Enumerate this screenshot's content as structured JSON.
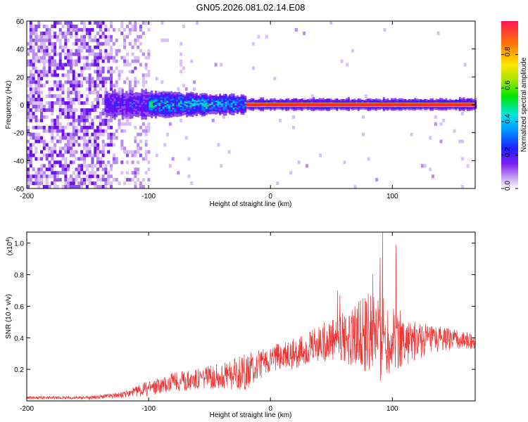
{
  "title": "GN05.2026.081.02.14.E08",
  "chart_data": [
    {
      "type": "heatmap",
      "name": "spectrogram",
      "xlabel": "Height of straight line (km)",
      "ylabel": "Frequency (Hz)",
      "xlim": [
        -200,
        168
      ],
      "ylim": [
        -60,
        60
      ],
      "xticks": [
        -200,
        -100,
        0,
        100
      ],
      "yticks": [
        -60,
        -40,
        -20,
        0,
        20,
        40,
        60
      ],
      "colorbar": {
        "label": "Normalized spectral amplitude",
        "range": [
          0,
          1
        ],
        "ticks": [
          0.0,
          0.2,
          0.4,
          0.6,
          0.8
        ]
      },
      "features": [
        {
          "description": "noise region",
          "x_range": [
            -200,
            -100
          ],
          "amplitude": 0.1
        },
        {
          "description": "broadened signal",
          "x_range": [
            -130,
            -20
          ],
          "freq_halfwidth_hz": 10,
          "peak_amplitude": 0.6
        },
        {
          "description": "steady carrier line",
          "x_range": [
            -20,
            168
          ],
          "frequency_hz": 0,
          "amplitude": 0.9
        }
      ]
    },
    {
      "type": "line",
      "name": "snr",
      "xlabel": "Height of straight line (km)",
      "ylabel": "SNR (10 * v/v)",
      "y_scale_label": "(x10",
      "y_scale_exponent": "4",
      "xlim": [
        -200,
        168
      ],
      "ylim": [
        0,
        1.07
      ],
      "xticks": [
        -200,
        -100,
        0,
        100
      ],
      "yticks": [
        0.2,
        0.4,
        0.6,
        0.8,
        1.0
      ],
      "color": "#ee3333",
      "envelope": {
        "x": [
          -200,
          -150,
          -120,
          -100,
          -80,
          -60,
          -40,
          -20,
          0,
          20,
          40,
          60,
          80,
          90,
          100,
          120,
          140,
          168
        ],
        "y_mean": [
          0.02,
          0.02,
          0.04,
          0.08,
          0.12,
          0.14,
          0.16,
          0.18,
          0.27,
          0.3,
          0.37,
          0.4,
          0.43,
          0.42,
          0.4,
          0.38,
          0.39,
          0.38
        ],
        "y_spread": [
          0.01,
          0.01,
          0.02,
          0.05,
          0.06,
          0.07,
          0.08,
          0.12,
          0.08,
          0.1,
          0.12,
          0.16,
          0.25,
          0.3,
          0.22,
          0.12,
          0.08,
          0.05
        ]
      },
      "peaks": [
        {
          "x": 92,
          "y": 1.07
        },
        {
          "x": 103,
          "y": 0.99
        },
        {
          "x": 90,
          "y": 0.91
        },
        {
          "x": 55,
          "y": 0.7
        },
        {
          "x": 57,
          "y": 0.67
        },
        {
          "x": 84,
          "y": 0.8
        }
      ]
    }
  ]
}
